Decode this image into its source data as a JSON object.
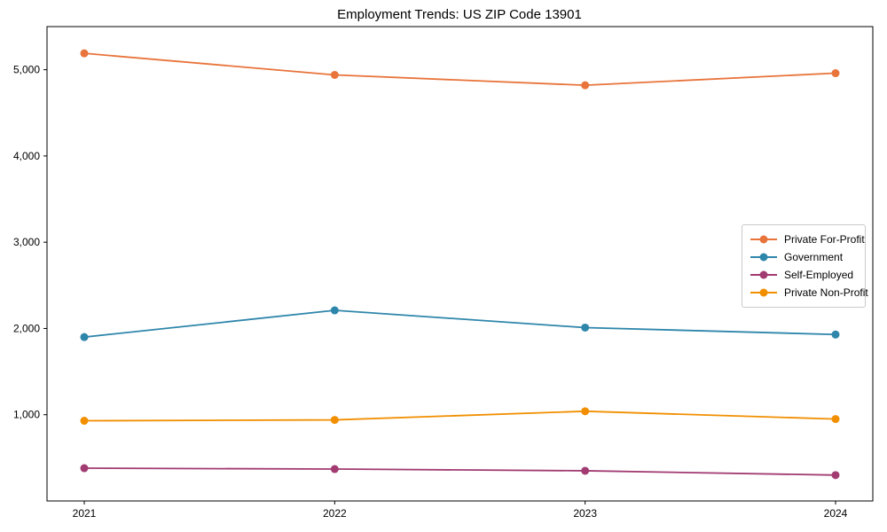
{
  "chart_data": {
    "type": "line",
    "title": "Employment Trends: US ZIP Code 13901",
    "categories": [
      "2021",
      "2022",
      "2023",
      "2024"
    ],
    "y_ticks": [
      1000,
      2000,
      3000,
      4000,
      5000
    ],
    "y_tick_labels": [
      "1,000",
      "2,000",
      "3,000",
      "4,000",
      "5,000"
    ],
    "ylim": [
      0,
      5500
    ],
    "grid": false,
    "legend_position": "center-right",
    "series": [
      {
        "name": "Private For-Profit",
        "color": "#E8743B",
        "values": [
          5190,
          4940,
          4820,
          4960
        ]
      },
      {
        "name": "Government",
        "color": "#2E86AB",
        "values": [
          1900,
          2210,
          2010,
          1930
        ]
      },
      {
        "name": "Self-Employed",
        "color": "#A23B72",
        "values": [
          380,
          370,
          350,
          300
        ]
      },
      {
        "name": "Private Non-Profit",
        "color": "#F18F01",
        "values": [
          930,
          940,
          1040,
          950
        ]
      }
    ]
  }
}
